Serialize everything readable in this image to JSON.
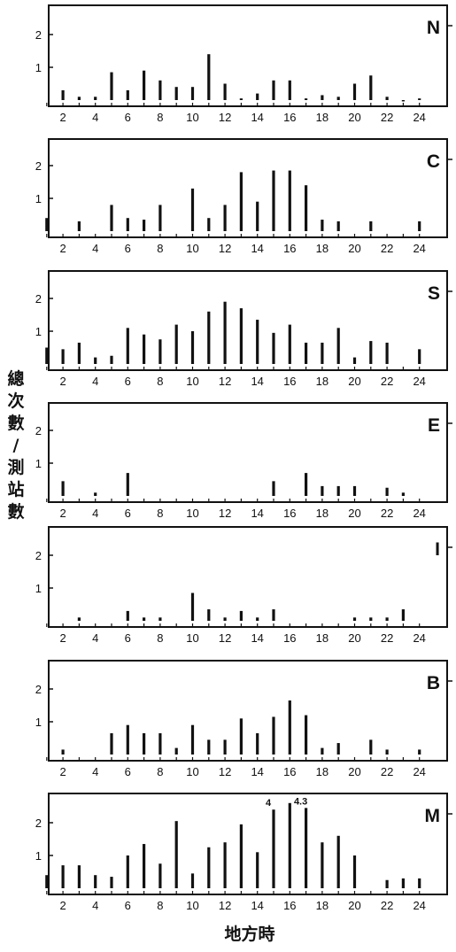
{
  "figure": {
    "ylabel": "總次數/測站數",
    "xlabel": "地方時",
    "colors": {
      "ink": "#111111"
    }
  },
  "chart_data": [
    {
      "type": "bar",
      "panel": "N",
      "xlim": [
        0,
        25
      ],
      "ylim": [
        0,
        2.8
      ],
      "xticks": [
        "2",
        "4",
        "6",
        "8",
        "10",
        "12",
        "14",
        "16",
        "18",
        "20",
        "22",
        "24"
      ],
      "yticks": [
        "1",
        "2"
      ],
      "x": [
        2,
        3,
        4,
        5,
        6,
        7,
        8,
        9,
        10,
        11,
        12,
        13,
        14,
        15,
        16,
        17,
        18,
        19,
        20,
        21,
        22,
        23,
        24
      ],
      "values": [
        0.3,
        0.1,
        0.1,
        0.85,
        0.3,
        0.9,
        0.6,
        0.4,
        0.4,
        1.4,
        0.5,
        0.05,
        0.2,
        0.6,
        0.6,
        0.05,
        0.15,
        0.1,
        0.5,
        0.75,
        0.1,
        0.0,
        0.05
      ],
      "annotations": []
    },
    {
      "type": "bar",
      "panel": "C",
      "xlim": [
        0,
        25
      ],
      "ylim": [
        0,
        2.8
      ],
      "xticks": [
        "2",
        "4",
        "6",
        "8",
        "10",
        "12",
        "14",
        "16",
        "18",
        "20",
        "22",
        "24"
      ],
      "yticks": [
        "1",
        "2"
      ],
      "x": [
        1,
        3,
        5,
        6,
        7,
        8,
        10,
        11,
        12,
        13,
        14,
        15,
        16,
        17,
        18,
        19,
        21,
        24
      ],
      "values": [
        0.4,
        0.3,
        0.8,
        0.4,
        0.35,
        0.8,
        1.3,
        0.4,
        0.8,
        1.8,
        0.9,
        1.85,
        1.85,
        1.4,
        0.35,
        0.3,
        0.3,
        0.3
      ],
      "annotations": []
    },
    {
      "type": "bar",
      "panel": "S",
      "xlim": [
        0,
        25
      ],
      "ylim": [
        0,
        2.8
      ],
      "xticks": [
        "2",
        "4",
        "6",
        "8",
        "10",
        "12",
        "14",
        "16",
        "18",
        "20",
        "22",
        "24"
      ],
      "yticks": [
        "1",
        "2"
      ],
      "x": [
        1,
        2,
        3,
        4,
        5,
        6,
        7,
        8,
        9,
        10,
        11,
        12,
        13,
        14,
        15,
        16,
        17,
        18,
        19,
        20,
        21,
        22,
        24
      ],
      "values": [
        0.5,
        0.45,
        0.65,
        0.2,
        0.25,
        1.1,
        0.9,
        0.75,
        1.2,
        1.0,
        1.6,
        1.9,
        1.7,
        1.35,
        0.95,
        1.2,
        0.65,
        0.65,
        1.1,
        0.2,
        0.7,
        0.65,
        0.45
      ],
      "annotations": []
    },
    {
      "type": "bar",
      "panel": "E",
      "xlim": [
        0,
        25
      ],
      "ylim": [
        0,
        2.8
      ],
      "xticks": [
        "2",
        "4",
        "6",
        "8",
        "10",
        "12",
        "14",
        "16",
        "18",
        "20",
        "22",
        "24"
      ],
      "yticks": [
        "1",
        "2"
      ],
      "x": [
        2,
        4,
        6,
        15,
        17,
        18,
        19,
        20,
        22,
        23
      ],
      "values": [
        0.45,
        0.1,
        0.7,
        0.45,
        0.7,
        0.3,
        0.3,
        0.3,
        0.25,
        0.1
      ],
      "annotations": []
    },
    {
      "type": "bar",
      "panel": "I",
      "xlim": [
        0,
        25
      ],
      "ylim": [
        0,
        2.8
      ],
      "xticks": [
        "2",
        "4",
        "6",
        "8",
        "10",
        "12",
        "14",
        "16",
        "18",
        "20",
        "22",
        "24"
      ],
      "yticks": [
        "1",
        "2"
      ],
      "x": [
        3,
        6,
        7,
        8,
        10,
        11,
        12,
        13,
        14,
        15,
        20,
        21,
        22,
        23
      ],
      "values": [
        0.1,
        0.3,
        0.1,
        0.1,
        0.85,
        0.35,
        0.1,
        0.3,
        0.1,
        0.35,
        0.1,
        0.1,
        0.1,
        0.35
      ],
      "annotations": []
    },
    {
      "type": "bar",
      "panel": "B",
      "xlim": [
        0,
        25
      ],
      "ylim": [
        0,
        2.8
      ],
      "xticks": [
        "2",
        "4",
        "6",
        "8",
        "10",
        "12",
        "14",
        "16",
        "18",
        "20",
        "22",
        "24"
      ],
      "yticks": [
        "1",
        "2"
      ],
      "x": [
        2,
        5,
        6,
        7,
        8,
        9,
        10,
        11,
        12,
        13,
        14,
        15,
        16,
        17,
        18,
        19,
        21,
        22,
        24
      ],
      "values": [
        0.15,
        0.65,
        0.9,
        0.65,
        0.65,
        0.2,
        0.9,
        0.45,
        0.45,
        1.1,
        0.65,
        1.15,
        1.65,
        1.2,
        0.2,
        0.35,
        0.45,
        0.15,
        0.15
      ],
      "annotations": []
    },
    {
      "type": "bar",
      "panel": "M",
      "xlim": [
        0,
        25
      ],
      "ylim": [
        0,
        2.8
      ],
      "xticks": [
        "2",
        "4",
        "6",
        "8",
        "10",
        "12",
        "14",
        "16",
        "18",
        "20",
        "22",
        "24"
      ],
      "yticks": [
        "1",
        "2"
      ],
      "x": [
        1,
        2,
        3,
        4,
        5,
        6,
        7,
        8,
        9,
        10,
        11,
        12,
        13,
        14,
        15,
        16,
        17,
        18,
        19,
        20,
        22,
        23,
        24
      ],
      "values": [
        0.4,
        0.7,
        0.7,
        0.4,
        0.35,
        1.0,
        1.35,
        0.75,
        2.05,
        0.45,
        1.25,
        1.4,
        1.95,
        1.1,
        2.4,
        2.6,
        2.45,
        1.4,
        1.6,
        1.0,
        0.25,
        0.3,
        0.3
      ],
      "annotations": [
        {
          "x": 15,
          "text": "4"
        },
        {
          "x": 17,
          "text": "4.3"
        }
      ]
    }
  ]
}
